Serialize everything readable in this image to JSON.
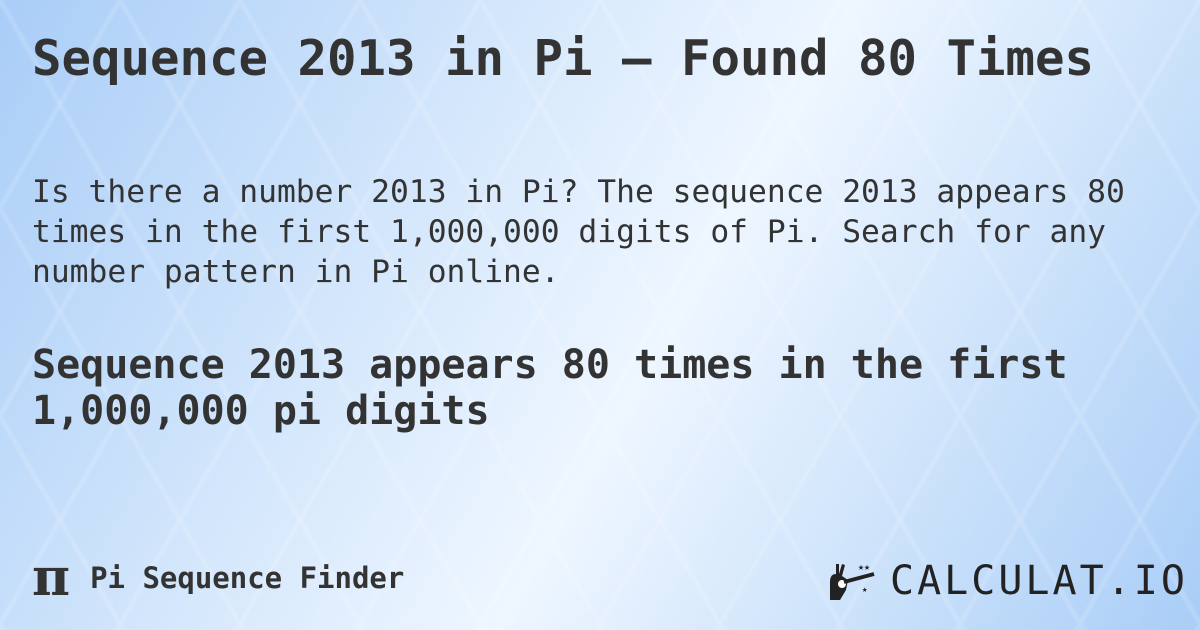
{
  "title": "Sequence 2013 in Pi — Found 80 Times",
  "description": "Is there a number 2013 in Pi? The sequence 2013 appears 80 times in the first 1,000,000 digits of Pi. Search for any number pattern in Pi online.",
  "result": "Sequence 2013 appears 80 times in the first 1,000,000 pi digits",
  "footer": {
    "app_icon": "pi-icon",
    "app_symbol": "π",
    "app_name": "Pi Sequence Finder",
    "brand": "CALCULAT.IO",
    "brand_icon": "magic-hand-wand-icon"
  },
  "colors": {
    "text": "#333333",
    "background": "#cfe4fb"
  }
}
